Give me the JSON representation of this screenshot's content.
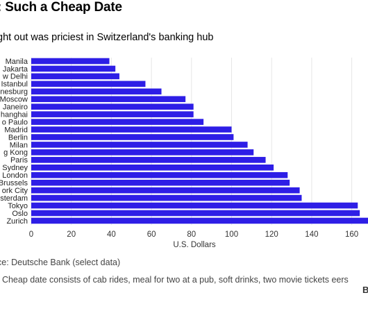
{
  "header": {
    "title": ": Such a Cheap Date",
    "subtitle": "ght out was priciest in Switzerland's banking hub"
  },
  "footer": {
    "source": "ce: Deutsche Bank (select data)",
    "note": ": Cheap date consists of cab rides, meal for two at a pub, soft drinks, two movie tickets eers",
    "brand": "B"
  },
  "chart_data": {
    "type": "bar",
    "orientation": "horizontal",
    "categories": [
      "Manila",
      "Jakarta",
      "w Delhi",
      "Istanbul",
      "nesburg",
      "Moscow",
      "Janeiro",
      "hanghai",
      "o Paulo",
      "Madrid",
      "Berlin",
      "Milan",
      "g Kong",
      "Paris",
      "Sydney",
      "London",
      "Brussels",
      "ork City",
      "sterdam",
      "Tokyo",
      "Oslo",
      "Zurich"
    ],
    "values": [
      39,
      42,
      44,
      57,
      65,
      77,
      81,
      81,
      86,
      100,
      101,
      108,
      111,
      117,
      121,
      128,
      129,
      134,
      135,
      163,
      164,
      180
    ],
    "xlabel": "U.S. Dollars",
    "ylabel": "",
    "xlim": [
      0,
      180
    ],
    "xticks": [
      0,
      20,
      40,
      60,
      80,
      100,
      120,
      140,
      160
    ],
    "grid": "vertical",
    "bar_color": "#2e1ee6",
    "gridline_color": "#e6e6e6"
  }
}
